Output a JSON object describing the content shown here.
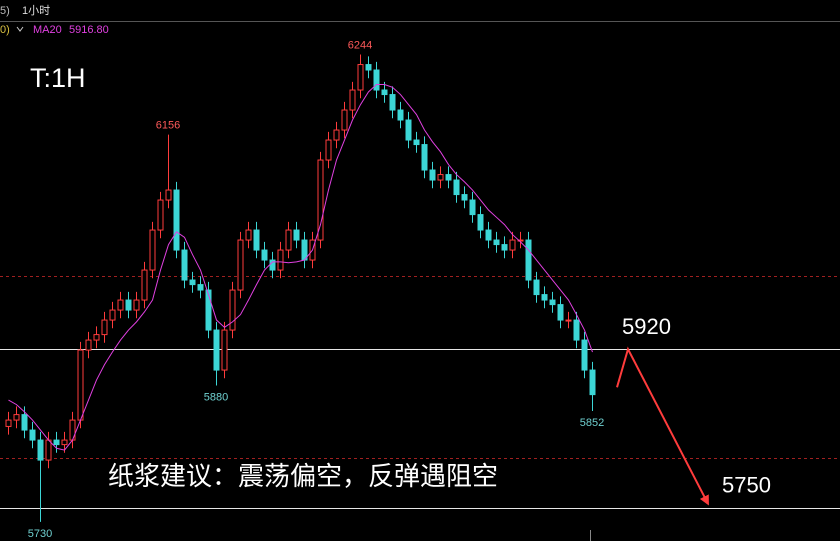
{
  "chart_data": {
    "type": "candlestick",
    "header": {
      "left": "5)",
      "period": "1小时",
      "ma_prefix": "0)"
    },
    "title": "T:1H",
    "annotation": "纸浆建议：震荡偏空，反弹遇阻空",
    "ylim": [
      5709,
      6304
    ],
    "up_color": "#ff3c3c",
    "down_color": "#3cd6d6",
    "high_label_color": "#ff5a5a",
    "low_label_color": "#6fd0d0",
    "open": [
      5835,
      5842,
      5848,
      5831,
      5820,
      5798,
      5820,
      5815,
      5820,
      5842,
      5919,
      5930,
      5936,
      5952,
      5963,
      5974,
      5963,
      5974,
      6007,
      6051,
      6084,
      6095,
      6029,
      5996,
      5991,
      5985,
      5941,
      5897,
      5941,
      5985,
      6040,
      6051,
      6029,
      6018,
      6007,
      6029,
      6051,
      6040,
      6018,
      6040,
      6128,
      6150,
      6161,
      6183,
      6205,
      6233,
      6227,
      6205,
      6200,
      6183,
      6172,
      6150,
      6145,
      6117,
      6106,
      6112,
      6106,
      6090,
      6084,
      6068,
      6051,
      6040,
      6035,
      6029,
      6040,
      6040,
      5996,
      5980,
      5974,
      5969,
      5952,
      5952,
      5930,
      5897
    ],
    "high": [
      5851,
      5857,
      5857,
      5840,
      5829,
      5829,
      5829,
      5829,
      5851,
      5928,
      5939,
      5945,
      5961,
      5972,
      5983,
      5983,
      5983,
      6016,
      6060,
      6093,
      6156,
      6104,
      6038,
      6005,
      6000,
      5994,
      5950,
      5950,
      5994,
      6049,
      6060,
      6060,
      6038,
      6027,
      6038,
      6060,
      6060,
      6049,
      6049,
      6137,
      6159,
      6170,
      6192,
      6214,
      6244,
      6242,
      6236,
      6214,
      6209,
      6192,
      6181,
      6159,
      6154,
      6126,
      6121,
      6121,
      6115,
      6099,
      6093,
      6077,
      6060,
      6049,
      6044,
      6049,
      6049,
      6049,
      6005,
      5989,
      5983,
      5978,
      5961,
      5961,
      5939,
      5906
    ],
    "low": [
      5826,
      5833,
      5822,
      5811,
      5730,
      5789,
      5806,
      5806,
      5811,
      5833,
      5910,
      5921,
      5927,
      5943,
      5954,
      5954,
      5954,
      5965,
      5998,
      6042,
      6075,
      6020,
      5987,
      5982,
      5976,
      5932,
      5880,
      5888,
      5932,
      5976,
      6031,
      6020,
      6009,
      5998,
      5998,
      6020,
      6031,
      6009,
      6009,
      6031,
      6119,
      6141,
      6152,
      6174,
      6196,
      6218,
      6196,
      6191,
      6174,
      6163,
      6141,
      6136,
      6108,
      6097,
      6097,
      6097,
      6081,
      6075,
      6059,
      6042,
      6031,
      6026,
      6020,
      6020,
      6031,
      5987,
      5971,
      5965,
      5960,
      5943,
      5943,
      5921,
      5888,
      5852
    ],
    "close": [
      5842,
      5848,
      5831,
      5820,
      5798,
      5820,
      5815,
      5820,
      5842,
      5919,
      5930,
      5936,
      5952,
      5963,
      5974,
      5963,
      5974,
      6007,
      6051,
      6084,
      6095,
      6029,
      5996,
      5991,
      5985,
      5941,
      5897,
      5941,
      5985,
      6040,
      6051,
      6029,
      6018,
      6007,
      6029,
      6051,
      6040,
      6018,
      6040,
      6128,
      6150,
      6161,
      6183,
      6205,
      6233,
      6227,
      6205,
      6200,
      6183,
      6172,
      6150,
      6145,
      6117,
      6106,
      6112,
      6106,
      6090,
      6084,
      6068,
      6051,
      6040,
      6035,
      6029,
      6040,
      6040,
      5996,
      5980,
      5974,
      5969,
      5952,
      5952,
      5930,
      5897,
      5870
    ],
    "ma": {
      "name": "MA20",
      "color": "#e040e0",
      "last_label": "5916.80",
      "values": [
        5864,
        5859,
        5851,
        5842,
        5831,
        5820,
        5811,
        5809,
        5820,
        5842,
        5864,
        5886,
        5903,
        5917,
        5930,
        5941,
        5950,
        5961,
        5974,
        6007,
        6035,
        6049,
        6043,
        6024,
        6007,
        5980,
        5952,
        5944,
        5950,
        5958,
        5974,
        5991,
        6007,
        6016,
        6016,
        6015,
        6016,
        6018,
        6029,
        6057,
        6095,
        6128,
        6150,
        6172,
        6189,
        6203,
        6211,
        6211,
        6208,
        6200,
        6189,
        6178,
        6161,
        6148,
        6137,
        6123,
        6112,
        6104,
        6095,
        6084,
        6073,
        6065,
        6057,
        6046,
        6038,
        6029,
        6018,
        6007,
        5996,
        5985,
        5974,
        5958,
        5941,
        5916.8
      ]
    },
    "levels": [
      {
        "value": 5920,
        "color": "#e6e6e6",
        "dashed": false
      },
      {
        "value": 5745,
        "color": "#e6e6e6",
        "dashed": false
      },
      {
        "value": 6000,
        "color": "#a02020",
        "dashed": true
      },
      {
        "value": 5800,
        "color": "#a02020",
        "dashed": true
      }
    ],
    "forecast": {
      "color": "#ff3c3c",
      "values": [
        5878,
        5920,
        5750
      ]
    }
  }
}
